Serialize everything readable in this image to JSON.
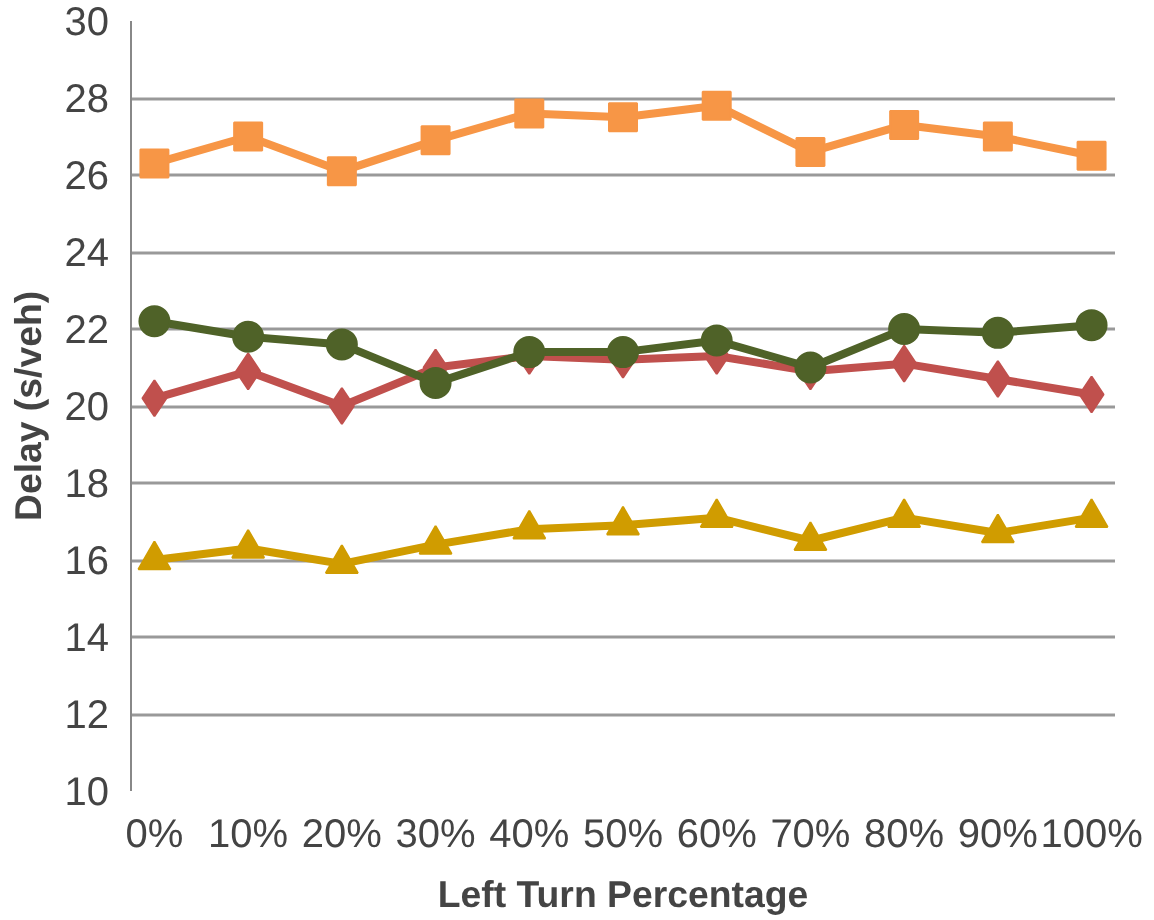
{
  "chart_data": {
    "type": "line",
    "xlabel": "Left Turn Percentage",
    "ylabel": "Delay (s/veh)",
    "categories": [
      "0%",
      "10%",
      "20%",
      "30%",
      "40%",
      "50%",
      "60%",
      "70%",
      "80%",
      "90%",
      "100%"
    ],
    "series": [
      {
        "color": "#f79646",
        "marker": "square",
        "values": [
          26.3,
          27.0,
          26.1,
          26.9,
          27.6,
          27.5,
          27.8,
          26.6,
          27.3,
          27.0,
          26.5
        ]
      },
      {
        "color": "#c0504d",
        "marker": "diamond",
        "values": [
          20.2,
          20.9,
          20.0,
          21.0,
          21.3,
          21.2,
          21.3,
          20.9,
          21.1,
          20.7,
          20.3
        ]
      },
      {
        "color": "#4f6228",
        "marker": "circle",
        "values": [
          22.2,
          21.8,
          21.6,
          20.6,
          21.4,
          21.4,
          21.7,
          21.0,
          22.0,
          21.9,
          22.1
        ]
      },
      {
        "color": "#d09c00",
        "marker": "triangle",
        "values": [
          16.0,
          16.3,
          15.9,
          16.4,
          16.8,
          16.9,
          17.1,
          16.5,
          17.1,
          16.7,
          17.1
        ]
      }
    ],
    "ylim": [
      10,
      30
    ],
    "yticks": [
      10,
      12,
      14,
      16,
      18,
      20,
      22,
      24,
      26,
      28,
      30
    ],
    "grid": "y",
    "line_style": "solid"
  }
}
